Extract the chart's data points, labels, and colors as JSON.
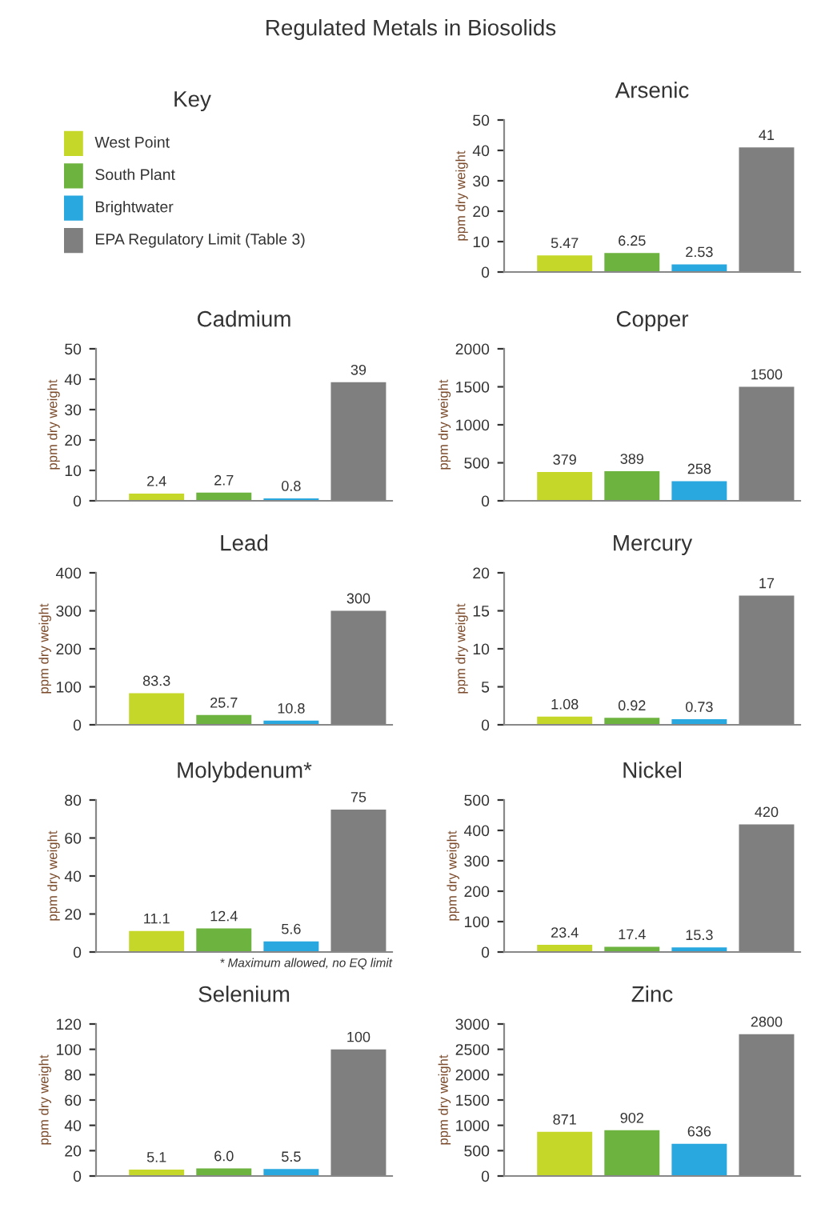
{
  "chart_data": [
    {
      "type": "other",
      "title": "Regulated Metals in Biosolids",
      "subtitle": "Key",
      "categories": [
        "West Point",
        "South Plant",
        "Brightwater",
        "EPA Regulatory Limit (Table 3)"
      ],
      "colors": [
        "#c5d82a",
        "#6db33f",
        "#29a8e0",
        "#7f7f7f"
      ]
    },
    {
      "type": "bar",
      "title": "Arsenic",
      "ylabel": "ppm dry weight",
      "categories": [
        null,
        null,
        null,
        null
      ],
      "values": [
        5.47,
        6.25,
        2.53,
        41
      ],
      "value_labels": [
        "5.47",
        "6.25",
        "2.53",
        "41"
      ],
      "colors": [
        "#c5d82a",
        "#6db33f",
        "#29a8e0",
        "#7f7f7f"
      ],
      "ylim": [
        0,
        50
      ],
      "yticks": [
        0,
        10,
        20,
        30,
        40,
        50
      ],
      "grid": false,
      "legend": false
    },
    {
      "type": "bar",
      "title": "Cadmium",
      "ylabel": "ppm dry weight",
      "categories": [
        null,
        null,
        null,
        null
      ],
      "values": [
        2.4,
        2.7,
        0.8,
        39
      ],
      "value_labels": [
        "2.4",
        "2.7",
        "0.8",
        "39"
      ],
      "colors": [
        "#c5d82a",
        "#6db33f",
        "#29a8e0",
        "#7f7f7f"
      ],
      "ylim": [
        0,
        50
      ],
      "yticks": [
        0,
        10,
        20,
        30,
        40,
        50
      ],
      "grid": false,
      "legend": false
    },
    {
      "type": "bar",
      "title": "Copper",
      "ylabel": "ppm dry weight",
      "categories": [
        null,
        null,
        null,
        null
      ],
      "values": [
        379,
        389,
        258,
        1500
      ],
      "value_labels": [
        "379",
        "389",
        "258",
        "1500"
      ],
      "colors": [
        "#c5d82a",
        "#6db33f",
        "#29a8e0",
        "#7f7f7f"
      ],
      "ylim": [
        0,
        2000
      ],
      "yticks": [
        0,
        500,
        1000,
        1500,
        2000
      ],
      "grid": false,
      "legend": false
    },
    {
      "type": "bar",
      "title": "Lead",
      "ylabel": "ppm dry weight",
      "categories": [
        null,
        null,
        null,
        null
      ],
      "values": [
        83.3,
        25.7,
        10.8,
        300
      ],
      "value_labels": [
        "83.3",
        "25.7",
        "10.8",
        "300"
      ],
      "colors": [
        "#c5d82a",
        "#6db33f",
        "#29a8e0",
        "#7f7f7f"
      ],
      "ylim": [
        0,
        400
      ],
      "yticks": [
        0,
        100,
        200,
        300,
        400
      ],
      "grid": false,
      "legend": false
    },
    {
      "type": "bar",
      "title": "Mercury",
      "ylabel": "ppm dry weight",
      "categories": [
        null,
        null,
        null,
        null
      ],
      "values": [
        1.08,
        0.92,
        0.73,
        17
      ],
      "value_labels": [
        "1.08",
        "0.92",
        "0.73",
        "17"
      ],
      "colors": [
        "#c5d82a",
        "#6db33f",
        "#29a8e0",
        "#7f7f7f"
      ],
      "ylim": [
        0,
        20
      ],
      "yticks": [
        0,
        5,
        10,
        15,
        20
      ],
      "grid": false,
      "legend": false
    },
    {
      "type": "bar",
      "title": "Molybdenum*",
      "ylabel": "ppm dry weight",
      "categories": [
        null,
        null,
        null,
        null
      ],
      "values": [
        11.1,
        12.4,
        5.6,
        75
      ],
      "value_labels": [
        "11.1",
        "12.4",
        "5.6",
        "75"
      ],
      "colors": [
        "#c5d82a",
        "#6db33f",
        "#29a8e0",
        "#7f7f7f"
      ],
      "ylim": [
        0,
        80
      ],
      "yticks": [
        0,
        20,
        40,
        60,
        80
      ],
      "grid": false,
      "legend": false,
      "annotations": [
        "* Maximum allowed, no EQ limit"
      ]
    },
    {
      "type": "bar",
      "title": "Nickel",
      "ylabel": "ppm dry weight",
      "categories": [
        null,
        null,
        null,
        null
      ],
      "values": [
        23.4,
        17.4,
        15.3,
        420
      ],
      "value_labels": [
        "23.4",
        "17.4",
        "15.3",
        "420"
      ],
      "colors": [
        "#c5d82a",
        "#6db33f",
        "#29a8e0",
        "#7f7f7f"
      ],
      "ylim": [
        0,
        500
      ],
      "yticks": [
        0,
        100,
        200,
        300,
        400,
        500
      ],
      "grid": false,
      "legend": false
    },
    {
      "type": "bar",
      "title": "Selenium",
      "ylabel": "ppm dry weight",
      "categories": [
        null,
        null,
        null,
        null
      ],
      "values": [
        5.1,
        6.0,
        5.5,
        100
      ],
      "value_labels": [
        "5.1",
        "6.0",
        "5.5",
        "100"
      ],
      "colors": [
        "#c5d82a",
        "#6db33f",
        "#29a8e0",
        "#7f7f7f"
      ],
      "ylim": [
        0,
        120
      ],
      "yticks": [
        0,
        20,
        40,
        60,
        80,
        100,
        120
      ],
      "grid": false,
      "legend": false
    },
    {
      "type": "bar",
      "title": "Zinc",
      "ylabel": "ppm dry weight",
      "categories": [
        null,
        null,
        null,
        null
      ],
      "values": [
        871,
        902,
        636,
        2800
      ],
      "value_labels": [
        "871",
        "902",
        "636",
        "2800"
      ],
      "colors": [
        "#c5d82a",
        "#6db33f",
        "#29a8e0",
        "#7f7f7f"
      ],
      "ylim": [
        0,
        3000
      ],
      "yticks": [
        0,
        500,
        1000,
        1500,
        2000,
        2500,
        3000
      ],
      "grid": false,
      "legend": false
    }
  ]
}
